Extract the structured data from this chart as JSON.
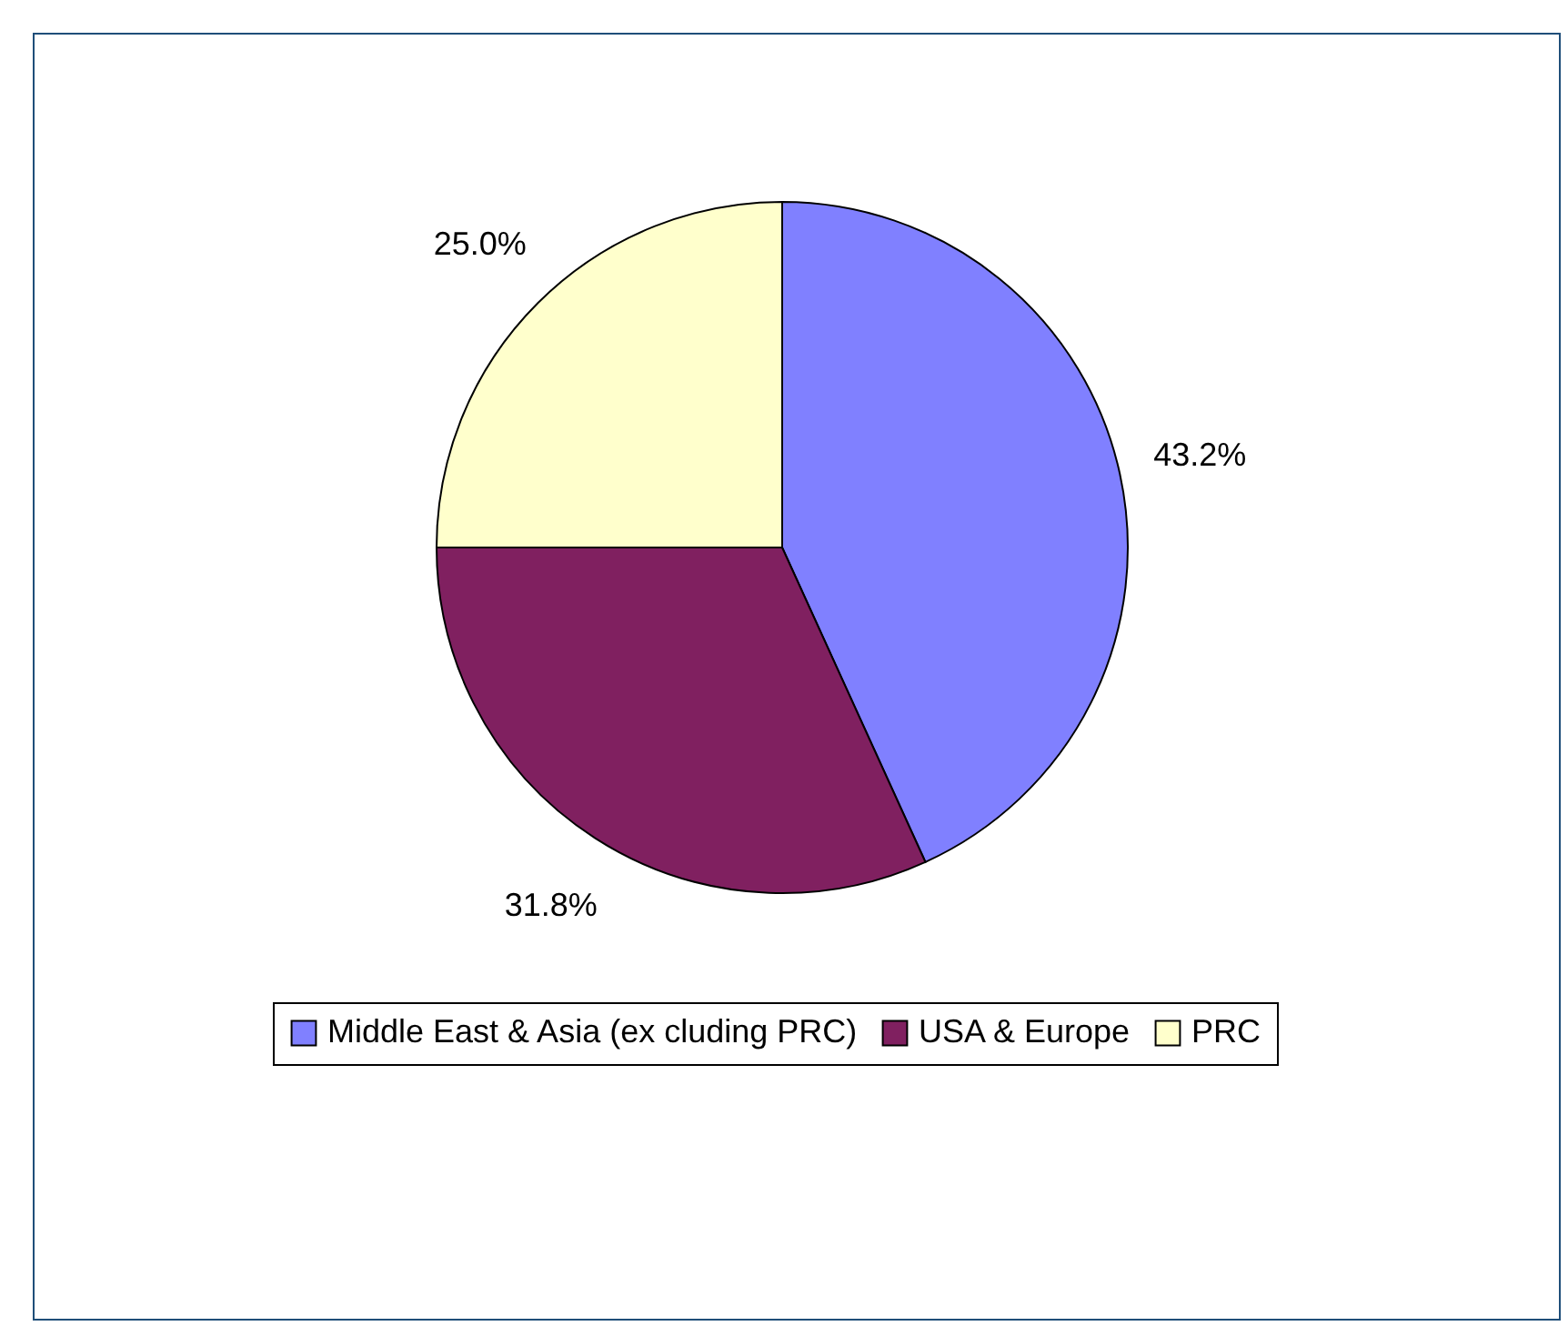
{
  "chart_data": {
    "type": "pie",
    "categories": [
      "Middle East & Asia (ex cluding PRC)",
      "USA & Europe",
      "PRC"
    ],
    "values": [
      43.2,
      31.8,
      25.0
    ],
    "colors": [
      "#8080ff",
      "#802060",
      "#ffffcc"
    ],
    "value_labels": [
      "43.2%",
      "31.8%",
      "25.0%"
    ],
    "legend": "bottom"
  }
}
